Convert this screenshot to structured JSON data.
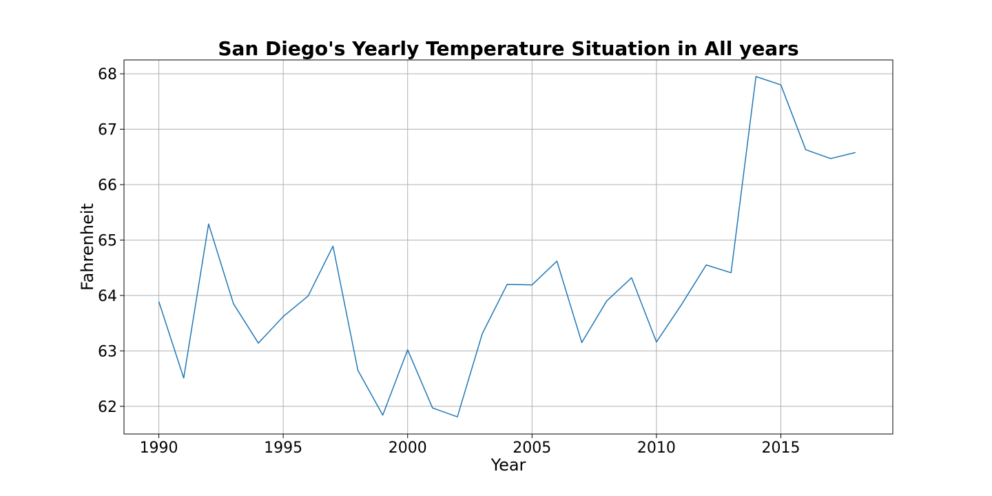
{
  "chart_data": {
    "type": "line",
    "title": "San Diego's Yearly Temperature Situation in All years",
    "xlabel": "Year",
    "ylabel": "Fahrenheit",
    "xlim": [
      1988.6,
      2019.5
    ],
    "ylim": [
      61.5,
      68.25
    ],
    "xticks": [
      1990,
      1995,
      2000,
      2005,
      2010,
      2015
    ],
    "yticks": [
      62,
      63,
      64,
      65,
      66,
      67,
      68
    ],
    "grid": true,
    "line_color": "#1f77b4",
    "series": [
      {
        "x": [
          1990,
          1991,
          1992,
          1993,
          1994,
          1995,
          1996,
          1997,
          1998,
          1999,
          2000,
          2001,
          2002,
          2003,
          2004,
          2005,
          2006,
          2007,
          2008,
          2009,
          2010,
          2011,
          2012,
          2013,
          2014,
          2015,
          2016,
          2017,
          2018
        ],
        "values": [
          63.89,
          62.51,
          65.29,
          63.85,
          63.14,
          63.62,
          63.99,
          64.89,
          62.65,
          61.84,
          63.02,
          61.97,
          61.81,
          63.31,
          64.2,
          64.19,
          64.62,
          63.15,
          63.9,
          64.32,
          63.16,
          63.83,
          64.55,
          64.41,
          67.95,
          67.8,
          66.63,
          66.47,
          66.58
        ]
      }
    ]
  }
}
